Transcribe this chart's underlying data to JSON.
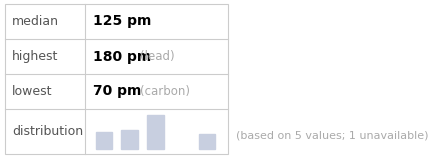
{
  "table_rows": [
    {
      "label": "median",
      "value": "125 pm",
      "extra": ""
    },
    {
      "label": "highest",
      "value": "180 pm",
      "extra": "(lead)"
    },
    {
      "label": "lowest",
      "value": "70 pm",
      "extra": "(carbon)"
    }
  ],
  "dist_label": "distribution",
  "dist_bars": [
    0.5,
    0.55,
    1.0,
    0.0,
    0.45
  ],
  "bar_color": "#c8cfe0",
  "footnote": "(based on 5 values; 1 unavailable)",
  "footnote_color": "#aaaaaa",
  "extra_color": "#aaaaaa",
  "table_border_color": "#cccccc",
  "bg_color": "#ffffff",
  "label_color": "#555555",
  "value_color": "#000000",
  "label_fontsize": 9,
  "value_fontsize": 10,
  "extra_fontsize": 8.5,
  "footnote_fontsize": 8
}
